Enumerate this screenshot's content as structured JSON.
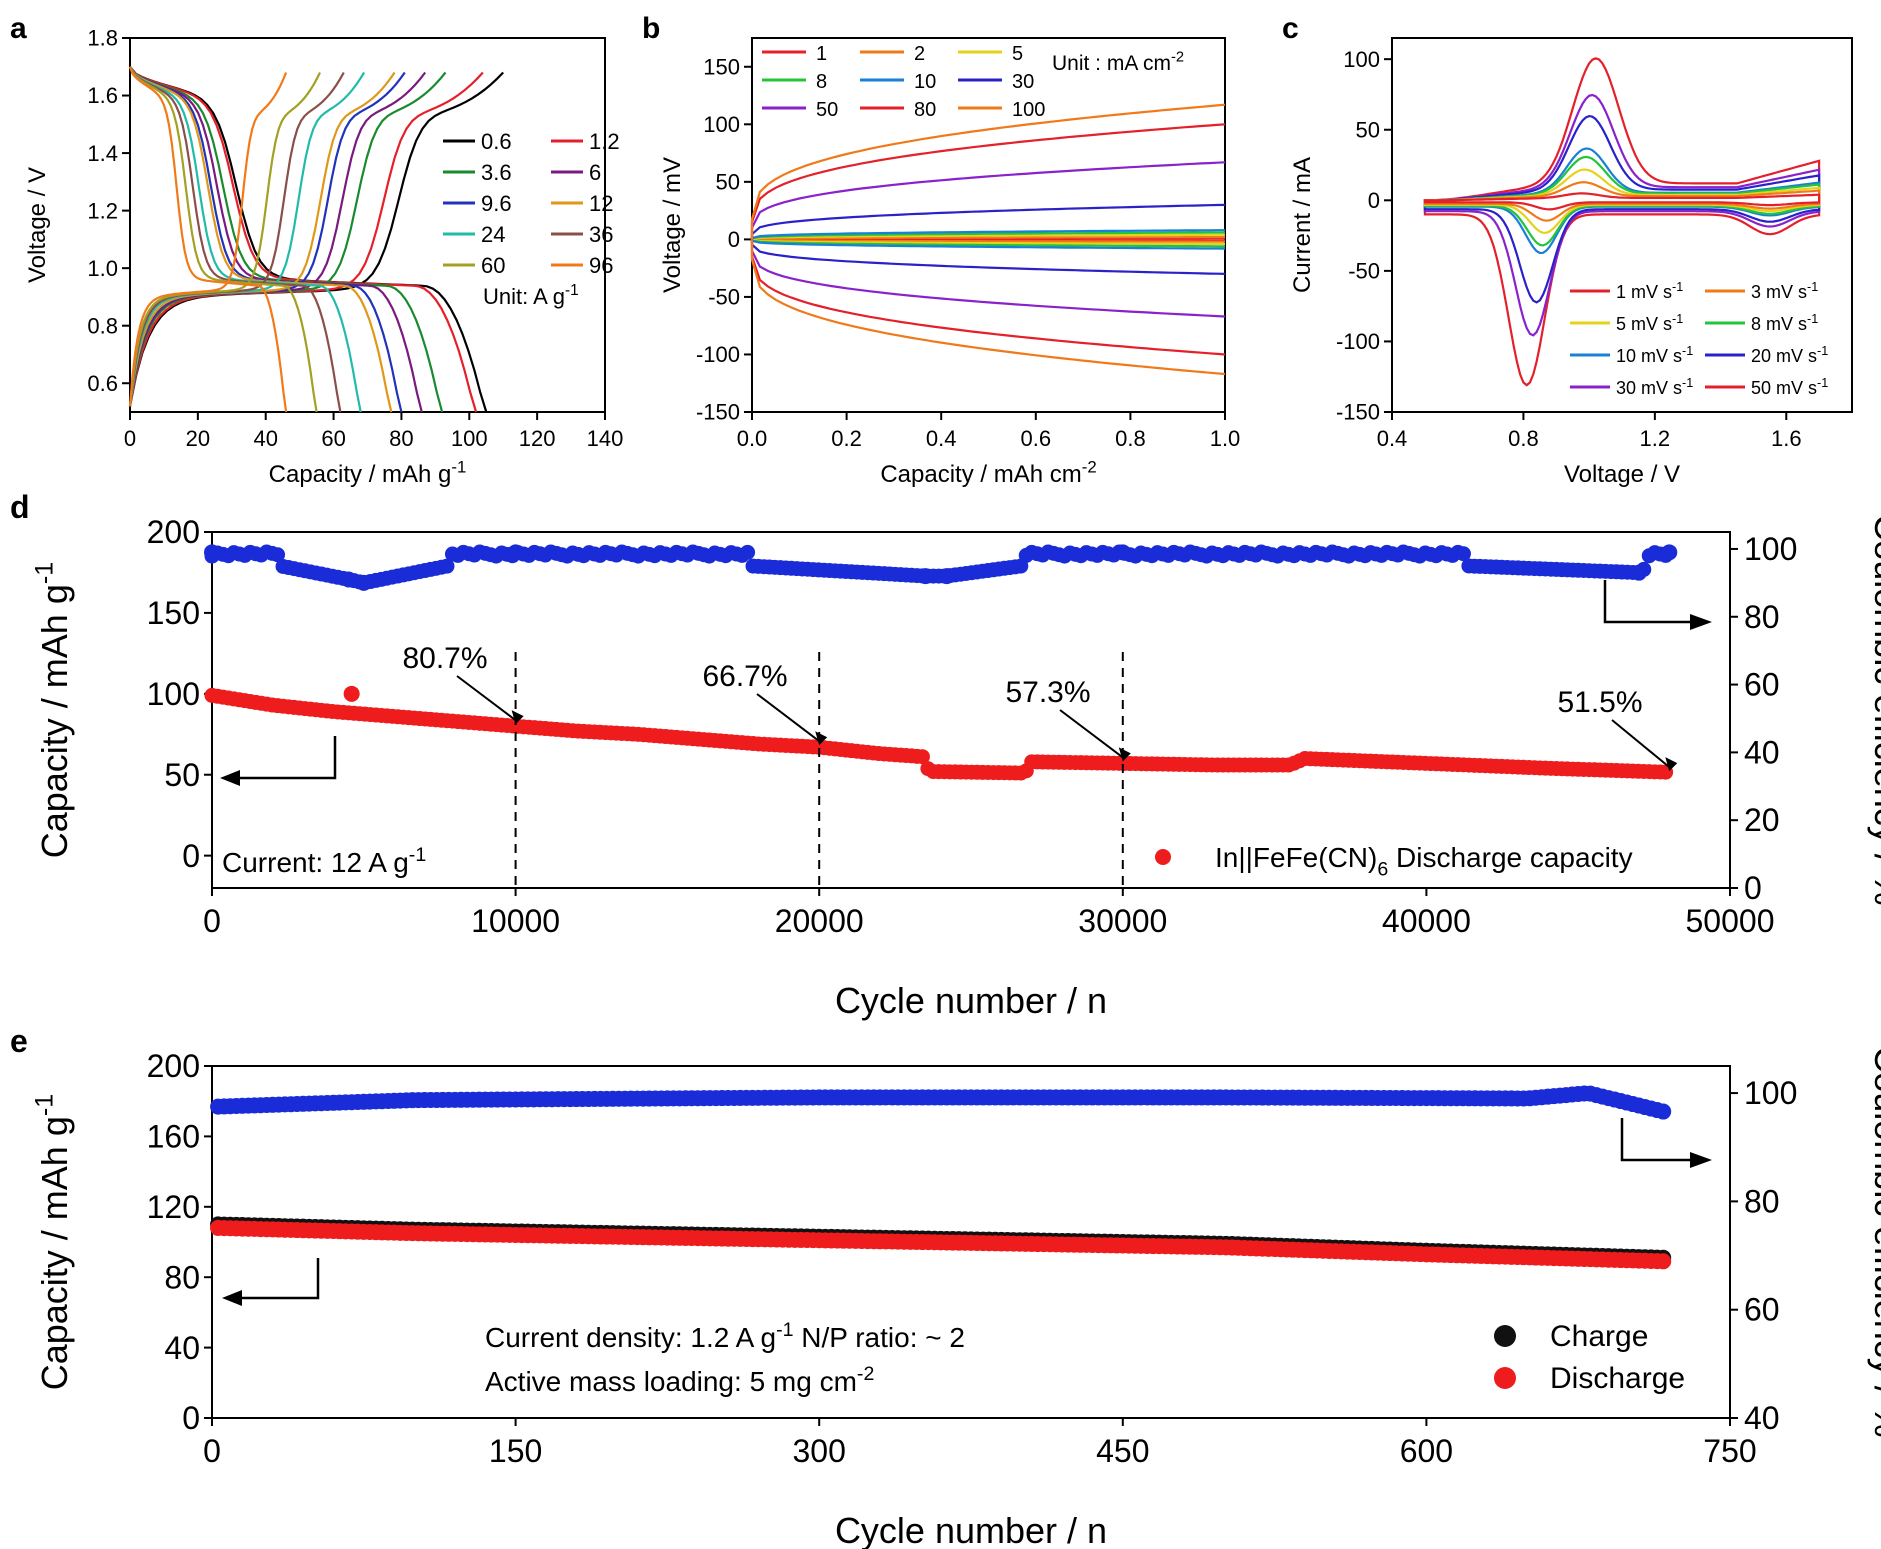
{
  "panel_labels": {
    "a": "a",
    "b": "b",
    "c": "c",
    "d": "d",
    "e": "e"
  },
  "chart_data": [
    {
      "panel": "a",
      "type": "line",
      "xlabel": "Capacity / mAh g-1",
      "ylabel": "Voltage / V",
      "xlim": [
        0,
        140
      ],
      "ylim": [
        0.5,
        1.8
      ],
      "xticks": [
        "0",
        "20",
        "40",
        "60",
        "80",
        "100",
        "120",
        "140"
      ],
      "yticks": [
        "0.6",
        "0.8",
        "1.0",
        "1.2",
        "1.4",
        "1.6",
        "1.8"
      ],
      "legend_note": "Unit: A g-1",
      "legend_position": "right",
      "series": [
        {
          "name": "0.6",
          "color": "#000000",
          "capacity": 105,
          "charge": 110
        },
        {
          "name": "1.2",
          "color": "#e4202a",
          "capacity": 102,
          "charge": 104
        },
        {
          "name": "3.6",
          "color": "#1a8a2e",
          "capacity": 92,
          "charge": 93
        },
        {
          "name": "6",
          "color": "#7a1a7e",
          "capacity": 86,
          "charge": 87
        },
        {
          "name": "9.6",
          "color": "#2233bb",
          "capacity": 80,
          "charge": 81
        },
        {
          "name": "12",
          "color": "#e0981a",
          "capacity": 77,
          "charge": 78
        },
        {
          "name": "24",
          "color": "#22bbaa",
          "capacity": 68,
          "charge": 69
        },
        {
          "name": "36",
          "color": "#8b4f4a",
          "capacity": 62,
          "charge": 63
        },
        {
          "name": "60",
          "color": "#a3a023",
          "capacity": 55,
          "charge": 56
        },
        {
          "name": "96",
          "color": "#f07a1a",
          "capacity": 46,
          "charge": 46
        }
      ]
    },
    {
      "panel": "b",
      "type": "line",
      "xlabel": "Capacity / mAh cm-2",
      "ylabel": "Voltage / mV",
      "xlim": [
        0,
        1.0
      ],
      "ylim": [
        -150,
        175
      ],
      "xticks": [
        "0.0",
        "0.2",
        "0.4",
        "0.6",
        "0.8",
        "1.0"
      ],
      "yticks": [
        "-150",
        "-100",
        "-50",
        "0",
        "50",
        "100",
        "150"
      ],
      "legend_note": "Unit : mA cm-2",
      "legend_position": "top-left",
      "series": [
        {
          "name": "1",
          "color": "#e4202a",
          "voltage_end": 1
        },
        {
          "name": "2",
          "color": "#f07a1a",
          "voltage_end": 2
        },
        {
          "name": "5",
          "color": "#e6d21a",
          "voltage_end": 4
        },
        {
          "name": "8",
          "color": "#22c43a",
          "voltage_end": 6
        },
        {
          "name": "10",
          "color": "#1a7fd6",
          "voltage_end": 8
        },
        {
          "name": "30",
          "color": "#2a22c8",
          "voltage_end": 30
        },
        {
          "name": "50",
          "color": "#8a22cc",
          "voltage_end": 67
        },
        {
          "name": "80",
          "color": "#e4202a",
          "voltage_end": 100
        },
        {
          "name": "100",
          "color": "#f07a1a",
          "voltage_end": 117
        }
      ]
    },
    {
      "panel": "c",
      "type": "line",
      "xlabel": "Voltage / V",
      "ylabel": "Current / mA",
      "xlim": [
        0.4,
        1.8
      ],
      "ylim": [
        -150,
        115
      ],
      "xticks": [
        "0.4",
        "0.8",
        "1.2",
        "1.6"
      ],
      "yticks": [
        "-150",
        "-100",
        "-50",
        "0",
        "50",
        "100"
      ],
      "legend_position": "bottom-right",
      "series": [
        {
          "name": "1 mV s-1",
          "color": "#e4202a",
          "scan_rate": 1,
          "anodic_peak": 5,
          "cathodic_peak": -5
        },
        {
          "name": "3 mV s-1",
          "color": "#f07a1a",
          "scan_rate": 3,
          "anodic_peak": 13,
          "cathodic_peak": -12
        },
        {
          "name": "5 mV s-1",
          "color": "#e6d21a",
          "scan_rate": 5,
          "anodic_peak": 22,
          "cathodic_peak": -20
        },
        {
          "name": "8 mV s-1",
          "color": "#22c43a",
          "scan_rate": 8,
          "anodic_peak": 31,
          "cathodic_peak": -28
        },
        {
          "name": "10 mV s-1",
          "color": "#1a7fd6",
          "scan_rate": 10,
          "anodic_peak": 37,
          "cathodic_peak": -33
        },
        {
          "name": "20 mV s-1",
          "color": "#2a22c8",
          "scan_rate": 20,
          "anodic_peak": 60,
          "cathodic_peak": -66
        },
        {
          "name": "30 mV s-1",
          "color": "#8a22cc",
          "scan_rate": 30,
          "anodic_peak": 75,
          "cathodic_peak": -88
        },
        {
          "name": "50 mV s-1",
          "color": "#e4202a",
          "scan_rate": 50,
          "anodic_peak": 101,
          "cathodic_peak": -121
        }
      ]
    },
    {
      "panel": "d",
      "type": "scatter",
      "xlabel": "Cycle number / n",
      "ylabel": "Capacity / mAh g-1",
      "y2label": "Coulombic efficiency / %",
      "xlim": [
        0,
        50000
      ],
      "ylim": [
        -20,
        200
      ],
      "y2lim": [
        0,
        105
      ],
      "xticks": [
        "0",
        "10000",
        "20000",
        "30000",
        "40000",
        "50000"
      ],
      "yticks": [
        "0",
        "50",
        "100",
        "150",
        "200"
      ],
      "y2ticks": [
        "0",
        "20",
        "40",
        "60",
        "80",
        "100"
      ],
      "note": "Current: 12 A g-1",
      "legend": "In||FeFe(CN)6 Discharge capacity",
      "annotations": [
        {
          "text": "80.7%",
          "x": 10000,
          "y": 80
        },
        {
          "text": "66.7%",
          "x": 20000,
          "y": 67
        },
        {
          "text": "57.3%",
          "x": 30000,
          "y": 57
        },
        {
          "text": "51.5%",
          "x": 48000,
          "y": 51
        }
      ],
      "capacity_points": [
        [
          0,
          99
        ],
        [
          2000,
          93
        ],
        [
          4000,
          89
        ],
        [
          6000,
          86
        ],
        [
          8000,
          83
        ],
        [
          10000,
          80
        ],
        [
          12000,
          77
        ],
        [
          14000,
          75
        ],
        [
          16000,
          72
        ],
        [
          18000,
          69
        ],
        [
          20000,
          67
        ],
        [
          22000,
          63
        ],
        [
          23500,
          61
        ],
        [
          23600,
          52
        ],
        [
          26800,
          51
        ],
        [
          26900,
          58
        ],
        [
          30000,
          57
        ],
        [
          33000,
          56
        ],
        [
          35500,
          56
        ],
        [
          36000,
          60
        ],
        [
          40000,
          57
        ],
        [
          44000,
          54
        ],
        [
          48000,
          51.5
        ]
      ],
      "efficiency_points": [
        [
          0,
          99
        ],
        [
          4500,
          91
        ],
        [
          5000,
          90
        ],
        [
          10000,
          99
        ],
        [
          23500,
          92
        ],
        [
          24200,
          92
        ],
        [
          30000,
          99
        ],
        [
          47000,
          93
        ],
        [
          48000,
          99
        ]
      ]
    },
    {
      "panel": "e",
      "type": "scatter",
      "xlabel": "Cycle number / n",
      "ylabel": "Capacity / mAh g-1",
      "y2label": "Coulombic efficiency / %",
      "xlim": [
        0,
        750
      ],
      "ylim": [
        0,
        200
      ],
      "y2lim": [
        40,
        105
      ],
      "xticks": [
        "0",
        "150",
        "300",
        "450",
        "600",
        "750"
      ],
      "yticks": [
        "0",
        "40",
        "80",
        "120",
        "160",
        "200"
      ],
      "y2ticks": [
        "40",
        "60",
        "80",
        "100"
      ],
      "note_line1": "Current density: 1.2 A g-1  N/P ratio: ~ 2",
      "note_line2": "Active mass loading: 5 mg cm-2",
      "legend": [
        "Charge",
        "Discharge"
      ],
      "charge_points": [
        [
          3,
          110
        ],
        [
          100,
          107
        ],
        [
          200,
          105
        ],
        [
          300,
          103
        ],
        [
          400,
          101
        ],
        [
          500,
          99
        ],
        [
          600,
          95
        ],
        [
          718,
          91
        ]
      ],
      "discharge_points": [
        [
          3,
          108
        ],
        [
          100,
          105
        ],
        [
          200,
          103
        ],
        [
          300,
          101
        ],
        [
          400,
          99
        ],
        [
          500,
          97
        ],
        [
          600,
          93
        ],
        [
          718,
          89
        ]
      ],
      "efficiency_points": [
        [
          3,
          97.5
        ],
        [
          100,
          98.7
        ],
        [
          300,
          99.2
        ],
        [
          500,
          99.2
        ],
        [
          650,
          99
        ],
        [
          680,
          100
        ],
        [
          718,
          96.5
        ]
      ]
    }
  ]
}
